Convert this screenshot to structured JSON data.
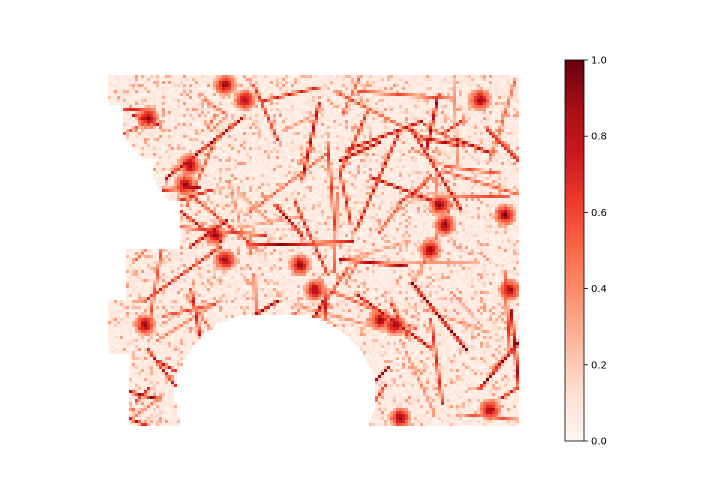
{
  "chart_data": {
    "type": "heatmap",
    "title": "",
    "xlabel": "",
    "ylabel": "",
    "axes_visible": false,
    "colormap": "Reds",
    "value_range": [
      0.0,
      1.0
    ],
    "colorbar": {
      "placement": "right",
      "ticks": [
        0.0,
        0.2,
        0.4,
        0.6,
        0.8,
        1.0
      ],
      "tick_labels": [
        "0.0",
        "0.2",
        "0.4",
        "0.6",
        "0.8",
        "1.0"
      ]
    },
    "color_stops": [
      "#fff5f0",
      "#fee0d2",
      "#fcbba1",
      "#fc9272",
      "#fb6a4a",
      "#ef3b2c",
      "#cb181d",
      "#a50f15",
      "#67000d"
    ],
    "description_of_field": "raster of values over a coastal region; blank (no-data) area is white"
  }
}
